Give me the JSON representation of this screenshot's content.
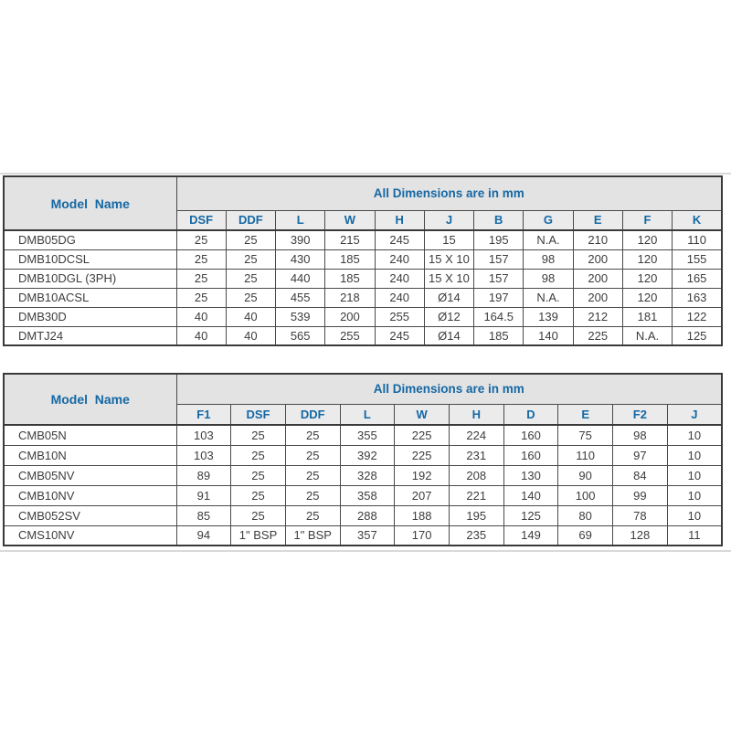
{
  "colors": {
    "header_bg": "#e3e3e3",
    "subheader_bg": "#ebebeb",
    "header_text": "#1568a4",
    "body_text": "#3d3d3d",
    "border": "#4a4a4a",
    "outer_border": "#3a3a3a",
    "page_line": "#d9d9d9",
    "page_bg": "#ffffff"
  },
  "tables": [
    {
      "id": "dmb-dimensions-table",
      "model_header": "Model  Name",
      "span_header": "All Dimensions are in mm",
      "columns": [
        "DSF",
        "DDF",
        "L",
        "W",
        "H",
        "J",
        "B",
        "G",
        "E",
        "F",
        "K"
      ],
      "rows": [
        {
          "model": "DMB05DG",
          "values": [
            "25",
            "25",
            "390",
            "215",
            "245",
            "15",
            "195",
            "N.A.",
            "210",
            "120",
            "110"
          ]
        },
        {
          "model": "DMB10DCSL",
          "values": [
            "25",
            "25",
            "430",
            "185",
            "240",
            "15 X 10",
            "157",
            "98",
            "200",
            "120",
            "155"
          ]
        },
        {
          "model": "DMB10DGL (3PH)",
          "values": [
            "25",
            "25",
            "440",
            "185",
            "240",
            "15 X 10",
            "157",
            "98",
            "200",
            "120",
            "165"
          ]
        },
        {
          "model": "DMB10ACSL",
          "values": [
            "25",
            "25",
            "455",
            "218",
            "240",
            "Ø14",
            "197",
            "N.A.",
            "200",
            "120",
            "163"
          ]
        },
        {
          "model": "DMB30D",
          "values": [
            "40",
            "40",
            "539",
            "200",
            "255",
            "Ø12",
            "164.5",
            "139",
            "212",
            "181",
            "122"
          ]
        },
        {
          "model": "DMTJ24",
          "values": [
            "40",
            "40",
            "565",
            "255",
            "245",
            "Ø14",
            "185",
            "140",
            "225",
            "N.A.",
            "125"
          ]
        }
      ]
    },
    {
      "id": "cmb-dimensions-table",
      "model_header": "Model  Name",
      "span_header": "All Dimensions are in mm",
      "columns": [
        "F1",
        "DSF",
        "DDF",
        "L",
        "W",
        "H",
        "D",
        "E",
        "F2",
        "J"
      ],
      "rows": [
        {
          "model": "CMB05N",
          "values": [
            "103",
            "25",
            "25",
            "355",
            "225",
            "224",
            "160",
            "75",
            "98",
            "10"
          ]
        },
        {
          "model": "CMB10N",
          "values": [
            "103",
            "25",
            "25",
            "392",
            "225",
            "231",
            "160",
            "110",
            "97",
            "10"
          ]
        },
        {
          "model": "CMB05NV",
          "values": [
            "89",
            "25",
            "25",
            "328",
            "192",
            "208",
            "130",
            "90",
            "84",
            "10"
          ]
        },
        {
          "model": "CMB10NV",
          "values": [
            "91",
            "25",
            "25",
            "358",
            "207",
            "221",
            "140",
            "100",
            "99",
            "10"
          ]
        },
        {
          "model": "CMB052SV",
          "values": [
            "85",
            "25",
            "25",
            "288",
            "188",
            "195",
            "125",
            "80",
            "78",
            "10"
          ]
        },
        {
          "model": "CMS10NV",
          "values": [
            "94",
            "1\" BSP",
            "1\" BSP",
            "357",
            "170",
            "235",
            "149",
            "69",
            "128",
            "11"
          ]
        }
      ]
    }
  ]
}
